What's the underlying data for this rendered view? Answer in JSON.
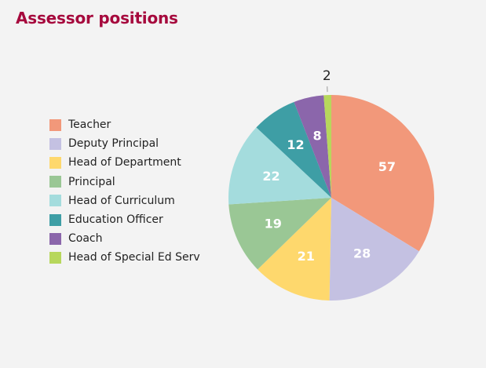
{
  "chart_data": {
    "type": "pie",
    "title": "Assessor positions",
    "categories": [
      "Teacher",
      "Deputy Principal",
      "Head of Department",
      "Principal",
      "Head of Curriculum",
      "Education Officer",
      "Coach",
      "Head of Special Ed Serv"
    ],
    "values": [
      57,
      28,
      21,
      19,
      22,
      12,
      8,
      2
    ],
    "colors": [
      "#f2987a",
      "#c4c1e2",
      "#fed86d",
      "#9ac795",
      "#a4dcdd",
      "#3e9ea5",
      "#8b66ab",
      "#b7d75c"
    ],
    "legend": "left"
  }
}
